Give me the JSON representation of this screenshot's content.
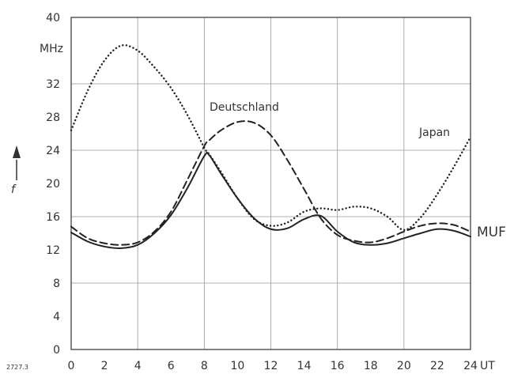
{
  "chart_data": {
    "type": "line",
    "xlabel": "UT",
    "ylabel": "f",
    "y_unit": "MHz",
    "xlim": [
      0,
      24
    ],
    "ylim": [
      0,
      40
    ],
    "x_ticks": [
      0,
      2,
      4,
      6,
      8,
      10,
      12,
      14,
      16,
      18,
      20,
      22,
      24
    ],
    "y_ticks": [
      0,
      4,
      8,
      12,
      16,
      20,
      24,
      28,
      32,
      36,
      40
    ],
    "y_tick_labels": [
      "0",
      "4",
      "8",
      "12",
      "16",
      "20",
      "24",
      "28",
      "32",
      "",
      "40"
    ],
    "grid": true,
    "footer_label": "2727.3",
    "x": [
      0,
      1,
      2,
      3,
      4,
      5,
      6,
      7,
      8,
      8.3,
      9,
      10,
      11,
      12,
      13,
      14,
      15,
      16,
      17,
      18,
      19,
      20,
      21,
      22,
      23,
      24
    ],
    "series": [
      {
        "name": "MUF",
        "style": "solid",
        "values": [
          14.1,
          13.0,
          12.4,
          12.2,
          12.6,
          14.0,
          16.2,
          19.5,
          23.3,
          23.4,
          21.2,
          18.2,
          15.8,
          14.5,
          14.6,
          15.7,
          16.1,
          14.2,
          12.9,
          12.6,
          12.8,
          13.4,
          14.0,
          14.5,
          14.3,
          13.6
        ]
      },
      {
        "name": "Deutschland",
        "style": "dashed",
        "values": [
          14.8,
          13.4,
          12.8,
          12.6,
          12.9,
          14.2,
          16.6,
          20.5,
          24.5,
          25.2,
          26.4,
          27.4,
          27.3,
          25.8,
          22.8,
          19.3,
          15.8,
          13.8,
          13.1,
          12.9,
          13.4,
          14.2,
          14.9,
          15.2,
          15.0,
          14.2
        ]
      },
      {
        "name": "Japan",
        "style": "dotted",
        "values": [
          26.4,
          31.2,
          34.8,
          36.6,
          36.0,
          34.0,
          31.5,
          28.2,
          24.3,
          23.5,
          21.4,
          18.2,
          15.7,
          14.9,
          15.3,
          16.6,
          17.0,
          16.8,
          17.2,
          17.0,
          16.0,
          14.4,
          15.9,
          18.7,
          22.0,
          25.6
        ]
      }
    ]
  }
}
